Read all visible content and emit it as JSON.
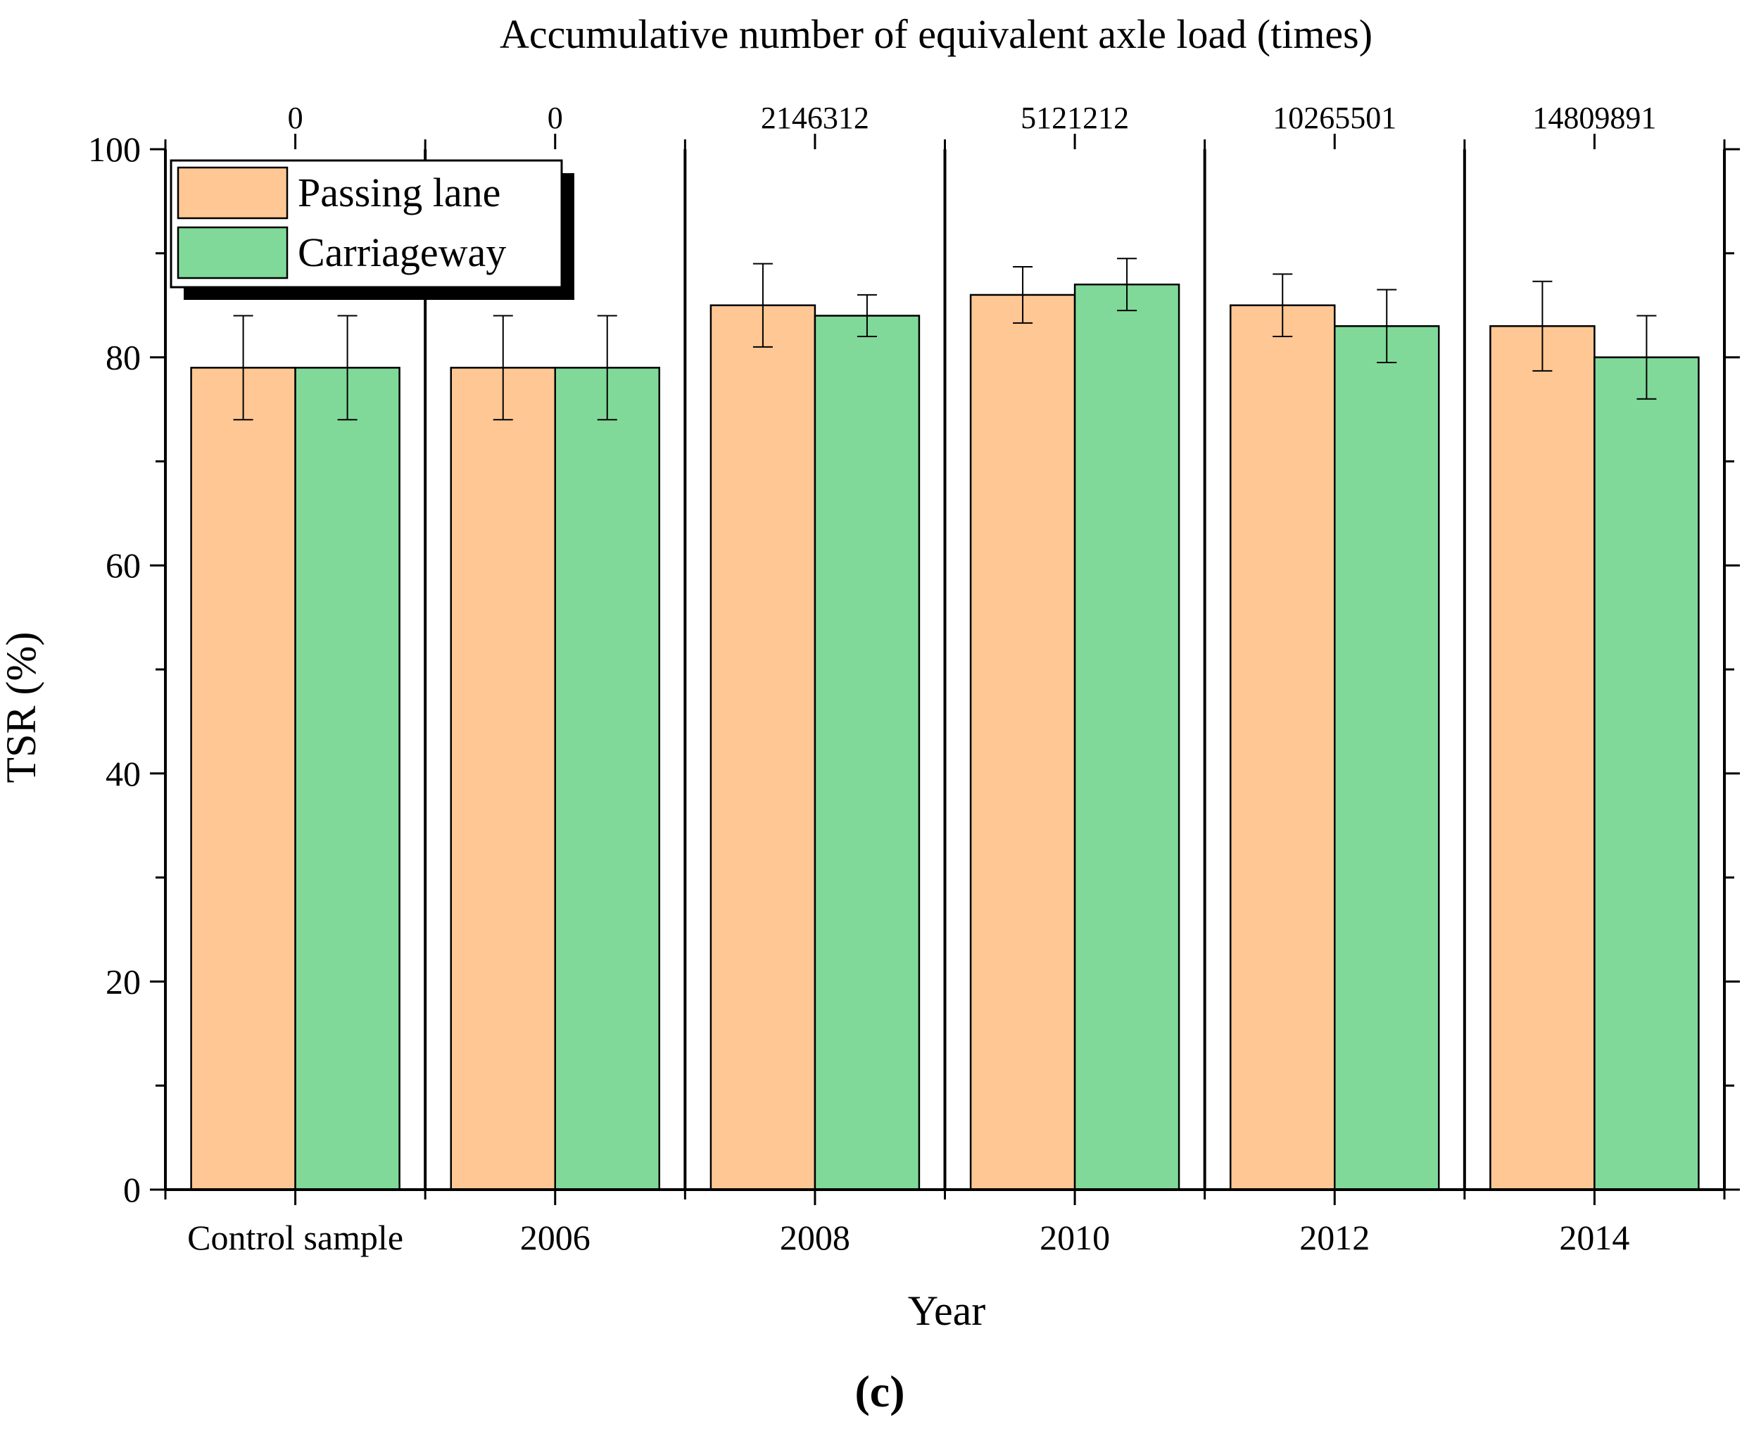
{
  "chart_data": {
    "type": "bar",
    "top_axis_title": "Accumulative number of equivalent axle load (times)",
    "top_axis_labels": [
      "0",
      "0",
      "2146312",
      "5121212",
      "10265501",
      "14809891"
    ],
    "categories": [
      "Control sample",
      "2006",
      "2008",
      "2010",
      "2012",
      "2014"
    ],
    "xlabel": "Year",
    "ylabel": "TSR (%)",
    "ylim": [
      0,
      100
    ],
    "yticks": [
      0,
      20,
      40,
      60,
      80,
      100
    ],
    "series": [
      {
        "name": "Passing lane",
        "color": "#ffc794",
        "values": [
          79,
          79,
          85,
          86,
          85,
          83
        ],
        "errors": [
          5,
          5,
          4,
          2.7,
          3,
          4.3
        ]
      },
      {
        "name": "Carriageway",
        "color": "#80d999",
        "values": [
          79,
          79,
          84,
          87,
          83,
          80
        ],
        "errors": [
          5,
          5,
          2,
          2.5,
          3.5,
          4
        ]
      }
    ],
    "legend_position": "top-left",
    "grid": false,
    "caption": "(c)"
  }
}
